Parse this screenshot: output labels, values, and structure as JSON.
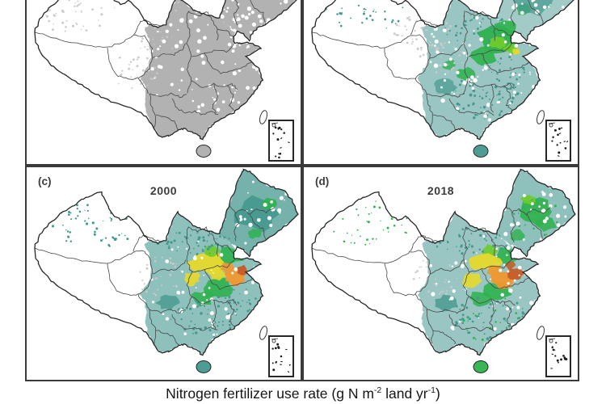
{
  "figure": {
    "panels": {
      "c": {
        "label": "(c)",
        "year": "2000"
      },
      "d": {
        "label": "(d)",
        "year": "2018"
      }
    },
    "caption": {
      "prefix": "Nitrogen fertilizer use rate (g N m",
      "sup1": "-2",
      "mid": " land yr",
      "sup2": "-1",
      "suffix": ")"
    },
    "colors": {
      "teal": "#45988f",
      "green": "#2eb24d",
      "bright_green": "#6ecb2c",
      "yellow": "#e6d92b",
      "orange": "#f0982f",
      "dark_orange": "#c75b27",
      "mask_gray": "#aeaeae",
      "light_gray": "#cbcbcb"
    },
    "icons": {
      "inset": "south-china-sea-inset"
    }
  }
}
